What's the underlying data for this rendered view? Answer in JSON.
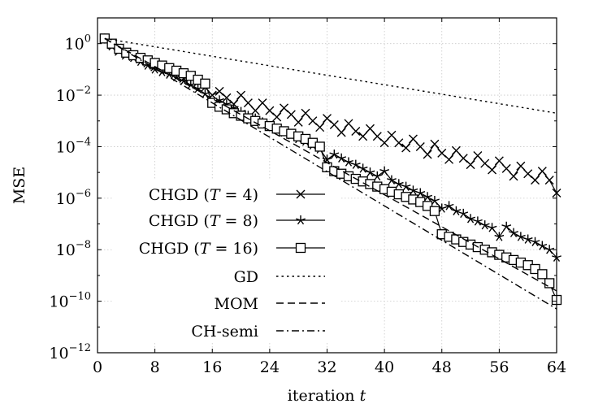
{
  "chart_data": {
    "type": "line",
    "title": "",
    "xlabel_text": "iteration ",
    "xlabel_var": "t",
    "ylabel": "MSE",
    "xlim": [
      0,
      64
    ],
    "ylim_log10": [
      -12,
      1
    ],
    "yscale": "log",
    "grid": true,
    "legend_position": "bottom-left",
    "x_ticks": [
      0,
      8,
      16,
      24,
      32,
      40,
      48,
      56,
      64
    ],
    "y_ticks": [
      {
        "exponent": 0,
        "base": "10",
        "exp_text": "0"
      },
      {
        "exponent": -2,
        "base": "10",
        "exp_text": "−2"
      },
      {
        "exponent": -4,
        "base": "10",
        "exp_text": "−4"
      },
      {
        "exponent": -6,
        "base": "10",
        "exp_text": "−6"
      },
      {
        "exponent": -8,
        "base": "10",
        "exp_text": "−8"
      },
      {
        "exponent": -10,
        "base": "10",
        "exp_text": "−10"
      },
      {
        "exponent": -12,
        "base": "10",
        "exp_text": "−12"
      }
    ],
    "series": [
      {
        "name": "CHGD (T = 4)",
        "label_prefix": "CHGD (",
        "label_var": "T",
        "label_suffix": " = 4)",
        "marker": "cross",
        "line": "solid",
        "x": [
          1,
          2,
          3,
          4,
          5,
          6,
          7,
          8,
          9,
          10,
          11,
          12,
          13,
          14,
          15,
          16,
          17,
          18,
          19,
          20,
          21,
          22,
          23,
          24,
          25,
          26,
          27,
          28,
          29,
          30,
          31,
          32,
          33,
          34,
          35,
          36,
          37,
          38,
          39,
          40,
          41,
          42,
          43,
          44,
          45,
          46,
          47,
          48,
          49,
          50,
          51,
          52,
          53,
          54,
          55,
          56,
          57,
          58,
          59,
          60,
          61,
          62,
          63,
          64
        ],
        "log10_y": [
          0.2,
          -0.05,
          -0.3,
          -0.45,
          -0.5,
          -0.6,
          -0.75,
          -0.9,
          -0.85,
          -1.0,
          -1.15,
          -1.35,
          -1.3,
          -1.5,
          -1.7,
          -2.0,
          -1.85,
          -2.1,
          -2.35,
          -2.0,
          -2.3,
          -2.6,
          -2.3,
          -2.6,
          -2.85,
          -2.5,
          -2.75,
          -3.05,
          -2.7,
          -3.0,
          -3.25,
          -2.9,
          -3.15,
          -3.45,
          -3.1,
          -3.4,
          -3.6,
          -3.3,
          -3.6,
          -3.85,
          -3.55,
          -3.85,
          -4.05,
          -3.7,
          -4.0,
          -4.3,
          -3.9,
          -4.25,
          -4.5,
          -4.15,
          -4.45,
          -4.7,
          -4.35,
          -4.65,
          -4.9,
          -4.55,
          -4.85,
          -5.15,
          -4.75,
          -5.05,
          -5.3,
          -4.95,
          -5.3,
          -5.8
        ]
      },
      {
        "name": "CHGD (T = 8)",
        "label_prefix": "CHGD (",
        "label_var": "T",
        "label_suffix": " = 8)",
        "marker": "star",
        "line": "solid",
        "x": [
          1,
          2,
          3,
          4,
          5,
          6,
          7,
          8,
          9,
          10,
          11,
          12,
          13,
          14,
          15,
          16,
          17,
          18,
          19,
          20,
          21,
          22,
          23,
          24,
          25,
          26,
          27,
          28,
          29,
          30,
          31,
          32,
          33,
          34,
          35,
          36,
          37,
          38,
          39,
          40,
          41,
          42,
          43,
          44,
          45,
          46,
          47,
          48,
          49,
          50,
          51,
          52,
          53,
          54,
          55,
          56,
          57,
          58,
          59,
          60,
          61,
          62,
          63,
          64
        ],
        "log10_y": [
          0.2,
          -0.1,
          -0.25,
          -0.4,
          -0.55,
          -0.7,
          -0.85,
          -1.0,
          -1.1,
          -1.2,
          -1.3,
          -1.45,
          -1.6,
          -1.75,
          -1.95,
          -2.3,
          -2.2,
          -2.35,
          -2.5,
          -2.65,
          -2.8,
          -2.9,
          -3.05,
          -3.2,
          -3.3,
          -3.45,
          -3.55,
          -3.7,
          -3.8,
          -3.95,
          -4.1,
          -4.5,
          -4.3,
          -4.45,
          -4.6,
          -4.7,
          -4.85,
          -5.0,
          -5.15,
          -4.95,
          -5.3,
          -5.45,
          -5.55,
          -5.7,
          -5.8,
          -5.95,
          -6.1,
          -6.4,
          -6.3,
          -6.5,
          -6.6,
          -6.8,
          -6.9,
          -7.05,
          -7.15,
          -7.5,
          -7.1,
          -7.35,
          -7.5,
          -7.6,
          -7.7,
          -7.85,
          -8.0,
          -8.3
        ]
      },
      {
        "name": "CHGD (T = 16)",
        "label_prefix": "CHGD (",
        "label_var": "T",
        "label_suffix": " = 16)",
        "marker": "square",
        "line": "solid",
        "x": [
          1,
          2,
          3,
          4,
          5,
          6,
          7,
          8,
          9,
          10,
          11,
          12,
          13,
          14,
          15,
          16,
          17,
          18,
          19,
          20,
          21,
          22,
          23,
          24,
          25,
          26,
          27,
          28,
          29,
          30,
          31,
          32,
          33,
          34,
          35,
          36,
          37,
          38,
          39,
          40,
          41,
          42,
          43,
          44,
          45,
          46,
          47,
          48,
          49,
          50,
          51,
          52,
          53,
          54,
          55,
          56,
          57,
          58,
          59,
          60,
          61,
          62,
          63,
          64
        ],
        "log10_y": [
          0.2,
          0.0,
          -0.2,
          -0.35,
          -0.45,
          -0.55,
          -0.65,
          -0.75,
          -0.85,
          -0.95,
          -1.05,
          -1.15,
          -1.25,
          -1.4,
          -1.55,
          -2.3,
          -2.45,
          -2.55,
          -2.7,
          -2.8,
          -2.9,
          -3.0,
          -3.1,
          -3.2,
          -3.3,
          -3.4,
          -3.5,
          -3.6,
          -3.7,
          -3.85,
          -4.0,
          -4.8,
          -4.95,
          -5.05,
          -5.15,
          -5.25,
          -5.35,
          -5.45,
          -5.55,
          -5.65,
          -5.75,
          -5.85,
          -5.95,
          -6.05,
          -6.15,
          -6.3,
          -6.5,
          -7.4,
          -7.5,
          -7.6,
          -7.7,
          -7.8,
          -7.9,
          -8.0,
          -8.1,
          -8.2,
          -8.3,
          -8.4,
          -8.5,
          -8.6,
          -8.75,
          -8.95,
          -9.3,
          -9.95
        ]
      },
      {
        "name": "GD",
        "marker": "none",
        "line": "dotted",
        "x": [
          1,
          64
        ],
        "log10_y": [
          0.2,
          -2.7
        ]
      },
      {
        "name": "MOM",
        "marker": "none",
        "line": "dashed",
        "x": [
          1,
          64
        ],
        "log10_y": [
          0.2,
          -9.6
        ]
      },
      {
        "name": "CH-semi",
        "marker": "none",
        "line": "dashdot",
        "x": [
          1,
          64
        ],
        "log10_y": [
          0.2,
          -10.3
        ]
      }
    ]
  }
}
